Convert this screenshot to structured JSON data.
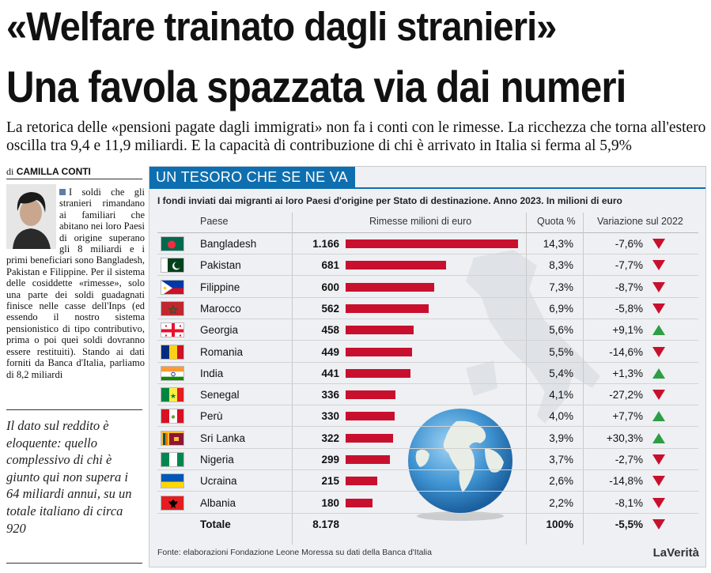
{
  "headline": {
    "line1": "«Welfare trainato dagli stranieri»",
    "line2": "Una favola spazzata via dai numeri"
  },
  "deck": "La retorica delle «pensioni pagate dagli immigrati» non fa i conti con le rimesse. La ricchezza che torna all'estero oscilla tra 9,4 e 11,9 miliardi. E la capacità di contribuzione di chi è arrivato in Italia si ferma al 5,9%",
  "byline": {
    "prefix": "di",
    "author": "CAMILLA CONTI"
  },
  "article_body": "I soldi che gli stranieri rimandano ai familiari che abitano nei loro Paesi di origine superano gli 8 miliardi e i primi beneficiari sono Bangladesh, Pakistan e Filippine. Per il sistema delle cosiddette «rimesse», solo una parte dei soldi guadagnati finisce nelle casse dell'Inps (ed essendo il nostro sistema pensionistico di tipo contributivo, prima o poi quei soldi dovranno essere restituiti). Stando ai dati forniti da Banca d'Italia, parliamo di 8,2 miliardi",
  "pull_quote": "Il dato sul reddito è eloquente: quello complessivo di chi è giunto qui non supera i 64 miliardi annui, su un totale italiano di circa 920",
  "graphic": {
    "header": "UN TESORO CHE SE NE VA",
    "subtitle": "I fondi inviati dai migranti ai loro Paesi d'origine per Stato di destinazione. Anno 2023. In milioni di euro",
    "columns": {
      "country": "Paese",
      "remittances": "Rimesse milioni di euro",
      "share": "Quota %",
      "change": "Variazione sul 2022"
    },
    "source": "Fonte: elaborazioni Fondazione Leone Moressa su dati della Banca d'Italia",
    "brand": "LaVerità",
    "colors": {
      "bar": "#c8102e",
      "header": "#0e6fb0",
      "up": "#2e9e46",
      "down": "#c8102e"
    }
  },
  "chart_data": {
    "type": "bar",
    "orientation": "horizontal",
    "max_value": 1166,
    "rows": [
      {
        "country": "Bangladesh",
        "flag": "bangladesh-flag",
        "value_label": "1.166",
        "value": 1166,
        "share": "14,3%",
        "change": "-7,6%",
        "trend": "down"
      },
      {
        "country": "Pakistan",
        "flag": "pakistan-flag",
        "value_label": "681",
        "value": 681,
        "share": "8,3%",
        "change": "-7,7%",
        "trend": "down"
      },
      {
        "country": "Filippine",
        "flag": "philippines-flag",
        "value_label": "600",
        "value": 600,
        "share": "7,3%",
        "change": "-8,7%",
        "trend": "down"
      },
      {
        "country": "Marocco",
        "flag": "morocco-flag",
        "value_label": "562",
        "value": 562,
        "share": "6,9%",
        "change": "-5,8%",
        "trend": "down"
      },
      {
        "country": "Georgia",
        "flag": "georgia-flag",
        "value_label": "458",
        "value": 458,
        "share": "5,6%",
        "change": "+9,1%",
        "trend": "up"
      },
      {
        "country": "Romania",
        "flag": "romania-flag",
        "value_label": "449",
        "value": 449,
        "share": "5,5%",
        "change": "-14,6%",
        "trend": "down"
      },
      {
        "country": "India",
        "flag": "india-flag",
        "value_label": "441",
        "value": 441,
        "share": "5,4%",
        "change": "+1,3%",
        "trend": "up"
      },
      {
        "country": "Senegal",
        "flag": "senegal-flag",
        "value_label": "336",
        "value": 336,
        "share": "4,1%",
        "change": "-27,2%",
        "trend": "down"
      },
      {
        "country": "Perù",
        "flag": "peru-flag",
        "value_label": "330",
        "value": 330,
        "share": "4,0%",
        "change": "+7,7%",
        "trend": "up"
      },
      {
        "country": "Sri Lanka",
        "flag": "sri-lanka-flag",
        "value_label": "322",
        "value": 322,
        "share": "3,9%",
        "change": "+30,3%",
        "trend": "up"
      },
      {
        "country": "Nigeria",
        "flag": "nigeria-flag",
        "value_label": "299",
        "value": 299,
        "share": "3,7%",
        "change": "-2,7%",
        "trend": "down"
      },
      {
        "country": "Ucraina",
        "flag": "ukraine-flag",
        "value_label": "215",
        "value": 215,
        "share": "2,6%",
        "change": "-14,8%",
        "trend": "down"
      },
      {
        "country": "Albania",
        "flag": "albania-flag",
        "value_label": "180",
        "value": 180,
        "share": "2,2%",
        "change": "-8,1%",
        "trend": "down"
      }
    ],
    "total": {
      "label": "Totale",
      "value_label": "8.178",
      "value": 8178,
      "share": "100%",
      "change": "-5,5%",
      "trend": "down"
    }
  }
}
